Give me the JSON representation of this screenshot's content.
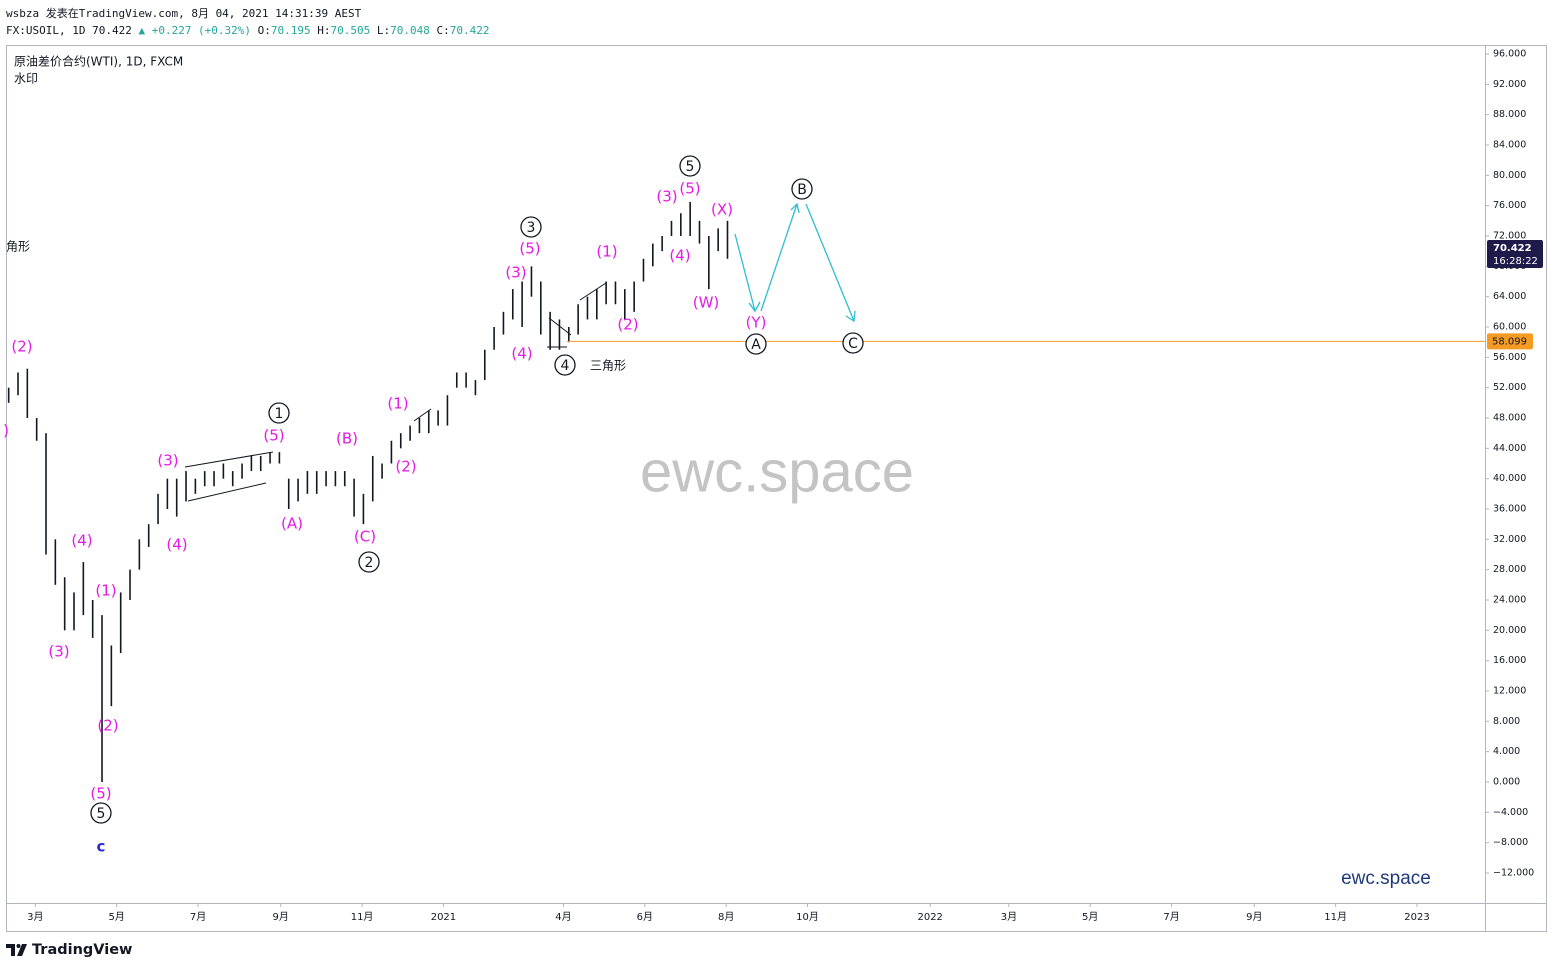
{
  "header": {
    "line1": "wsbza 发表在TradingView.com, 8月 04, 2021 14:31:39 AEST",
    "line2": [
      {
        "text": "FX:USOIL, 1D 70.422 ",
        "color": "#131722"
      },
      {
        "text": "▲",
        "color": "#26a69a"
      },
      {
        "text": " +0.227 (+0.32%) ",
        "color": "#26a69a"
      },
      {
        "text": "O:",
        "color": "#131722"
      },
      {
        "text": "70.195",
        "color": "#26a69a"
      },
      {
        "text": " H:",
        "color": "#131722"
      },
      {
        "text": "70.505",
        "color": "#26a69a"
      },
      {
        "text": " L:",
        "color": "#131722"
      },
      {
        "text": "70.048",
        "color": "#26a69a"
      },
      {
        "text": " C:",
        "color": "#131722"
      },
      {
        "text": "70.422",
        "color": "#26a69a"
      }
    ]
  },
  "footer": {
    "brand": "TradingView"
  },
  "chart_data": {
    "type": "ohlc",
    "title": "原油差价合约(WTI), 1D, FXCM",
    "subtitle": "水印",
    "color": "#131722",
    "x": [
      "2020-02-10",
      "2020-02-17",
      "2020-02-24",
      "2020-03-02",
      "2020-03-09",
      "2020-03-16",
      "2020-03-23",
      "2020-03-30",
      "2020-04-06",
      "2020-04-13",
      "2020-04-20",
      "2020-04-27",
      "2020-05-04",
      "2020-05-11",
      "2020-05-18",
      "2020-05-25",
      "2020-06-01",
      "2020-06-08",
      "2020-06-15",
      "2020-06-22",
      "2020-06-29",
      "2020-07-06",
      "2020-07-13",
      "2020-07-20",
      "2020-07-27",
      "2020-08-03",
      "2020-08-10",
      "2020-08-17",
      "2020-08-24",
      "2020-08-31",
      "2020-09-07",
      "2020-09-14",
      "2020-09-21",
      "2020-09-28",
      "2020-10-05",
      "2020-10-12",
      "2020-10-19",
      "2020-10-26",
      "2020-11-02",
      "2020-11-09",
      "2020-11-16",
      "2020-11-23",
      "2020-11-30",
      "2020-12-07",
      "2020-12-14",
      "2020-12-21",
      "2020-12-28",
      "2021-01-04",
      "2021-01-11",
      "2021-01-18",
      "2021-01-25",
      "2021-02-01",
      "2021-02-08",
      "2021-02-15",
      "2021-02-22",
      "2021-03-01",
      "2021-03-08",
      "2021-03-15",
      "2021-03-22",
      "2021-03-29",
      "2021-04-05",
      "2021-04-12",
      "2021-04-19",
      "2021-04-26",
      "2021-05-03",
      "2021-05-10",
      "2021-05-17",
      "2021-05-24",
      "2021-05-31",
      "2021-06-07",
      "2021-06-14",
      "2021-06-21",
      "2021-06-28",
      "2021-07-05",
      "2021-07-12",
      "2021-07-19",
      "2021-07-26",
      "2021-08-02"
    ],
    "high": [
      52,
      54,
      54.5,
      48,
      46,
      32,
      27,
      25,
      29,
      24,
      22,
      18,
      25,
      28,
      32,
      34,
      38,
      40,
      40,
      41,
      40,
      41,
      41,
      42,
      41,
      42,
      43,
      43,
      43.5,
      43.5,
      40,
      40,
      41,
      41,
      41,
      41,
      41,
      40,
      38,
      43,
      42,
      45,
      46,
      47,
      48,
      49,
      49,
      51,
      54,
      54,
      53,
      57,
      60,
      62,
      65,
      66,
      68,
      66,
      62,
      61,
      60,
      63,
      64,
      65,
      66,
      66,
      65,
      66,
      69,
      71,
      72,
      74,
      75,
      76.5,
      74,
      72,
      73,
      74
    ],
    "low": [
      50,
      51,
      48,
      45,
      30,
      26,
      20,
      20,
      22,
      19,
      0,
      10,
      17,
      24,
      28,
      31,
      34,
      36,
      35,
      37,
      38,
      39,
      39,
      40,
      39,
      40,
      41,
      41,
      42,
      42,
      36,
      37,
      38,
      38,
      39,
      39,
      39,
      35,
      34,
      37,
      40,
      42,
      44,
      45,
      46,
      46,
      47,
      47,
      52,
      52,
      51,
      53,
      57,
      59,
      61,
      60,
      64,
      59,
      57,
      57,
      58,
      59,
      61,
      61,
      63,
      63,
      61,
      62,
      66,
      68,
      70,
      72,
      72,
      72,
      71,
      65,
      70,
      69
    ],
    "xlim": [
      "2020-02-08",
      "2023-02-21"
    ],
    "xticks": [
      {
        "value": "2020-03",
        "label": "3月"
      },
      {
        "value": "2020-05",
        "label": "5月"
      },
      {
        "value": "2020-07",
        "label": "7月"
      },
      {
        "value": "2020-09",
        "label": "9月"
      },
      {
        "value": "2020-11",
        "label": "11月"
      },
      {
        "value": "2021-01",
        "label": "2021"
      },
      {
        "value": "2021-04",
        "label": "4月"
      },
      {
        "value": "2021-06",
        "label": "6月"
      },
      {
        "value": "2021-08",
        "label": "8月"
      },
      {
        "value": "2021-10",
        "label": "10月"
      },
      {
        "value": "2022-01",
        "label": "2022"
      },
      {
        "value": "2022-03",
        "label": "3月"
      },
      {
        "value": "2022-05",
        "label": "5月"
      },
      {
        "value": "2022-07",
        "label": "7月"
      },
      {
        "value": "2022-09",
        "label": "9月"
      },
      {
        "value": "2022-11",
        "label": "11月"
      },
      {
        "value": "2023-01",
        "label": "2023"
      }
    ],
    "ylim": [
      -15.96,
      97.19
    ],
    "yticks": [
      {
        "value": 96,
        "label": "96.000"
      },
      {
        "value": 92,
        "label": "92.000"
      },
      {
        "value": 88,
        "label": "88.000"
      },
      {
        "value": 84,
        "label": "84.000"
      },
      {
        "value": 80,
        "label": "80.000"
      },
      {
        "value": 76,
        "label": "76.000"
      },
      {
        "value": 72,
        "label": "72.000"
      },
      {
        "value": 68,
        "label": "68.000"
      },
      {
        "value": 64,
        "label": "64.000"
      },
      {
        "value": 60,
        "label": "60.000"
      },
      {
        "value": 56,
        "label": "56.000"
      },
      {
        "value": 52,
        "label": "52.000"
      },
      {
        "value": 48,
        "label": "48.000"
      },
      {
        "value": 44,
        "label": "44.000"
      },
      {
        "value": 40,
        "label": "40.000"
      },
      {
        "value": 36,
        "label": "36.000"
      },
      {
        "value": 32,
        "label": "32.000"
      },
      {
        "value": 28,
        "label": "28.000"
      },
      {
        "value": 24,
        "label": "24.000"
      },
      {
        "value": 20,
        "label": "20.000"
      },
      {
        "value": 16,
        "label": "16.000"
      },
      {
        "value": 12,
        "label": "12.000"
      },
      {
        "value": 8,
        "label": "8.000"
      },
      {
        "value": 4,
        "label": "4.000"
      },
      {
        "value": 0,
        "label": "0.000"
      },
      {
        "value": -4,
        "label": "−4.000"
      },
      {
        "value": -8,
        "label": "−8.000"
      },
      {
        "value": -12,
        "label": "−12.000"
      }
    ],
    "last_price": {
      "value": 70.422,
      "label": "70.422",
      "countdown": "16:28:22",
      "color": "#1e1b4b"
    },
    "price_line": {
      "value": 58.099,
      "label": "58.099",
      "color": "#f59a23"
    },
    "annotations": [
      {
        "text": "(2)",
        "style": "wave"
      },
      {
        "text": ")",
        "style": "wave"
      },
      {
        "text": "(4)",
        "style": "wave"
      },
      {
        "text": "(3)",
        "style": "wave"
      },
      {
        "text": "(1)",
        "style": "wave"
      },
      {
        "text": "(2)",
        "style": "wave"
      },
      {
        "text": "(5)",
        "style": "wave"
      },
      {
        "text": "(3)",
        "style": "wave"
      },
      {
        "text": "(4)",
        "style": "wave"
      },
      {
        "text": "(5)",
        "style": "wave"
      },
      {
        "text": "(A)",
        "style": "wave"
      },
      {
        "text": "(B)",
        "style": "wave"
      },
      {
        "text": "(C)",
        "style": "wave"
      },
      {
        "text": "(1)",
        "style": "wave"
      },
      {
        "text": "(2)",
        "style": "wave"
      },
      {
        "text": "(3)",
        "style": "wave"
      },
      {
        "text": "(5)",
        "style": "wave"
      },
      {
        "text": "(4)",
        "style": "wave"
      },
      {
        "text": "(1)",
        "style": "wave"
      },
      {
        "text": "(2)",
        "style": "wave"
      },
      {
        "text": "(3)",
        "style": "wave"
      },
      {
        "text": "(5)",
        "style": "wave"
      },
      {
        "text": "(4)",
        "style": "wave"
      },
      {
        "text": "(W)",
        "style": "wave"
      },
      {
        "text": "(X)",
        "style": "wave"
      },
      {
        "text": "(Y)",
        "style": "wave"
      },
      {
        "text": "1",
        "style": "circled"
      },
      {
        "text": "2",
        "style": "circled"
      },
      {
        "text": "3",
        "style": "circled"
      },
      {
        "text": "4",
        "style": "circled"
      },
      {
        "text": "5",
        "style": "circled"
      },
      {
        "text": "5",
        "style": "circled"
      },
      {
        "text": "A",
        "style": "circled"
      },
      {
        "text": "B",
        "style": "circled"
      },
      {
        "text": "C",
        "style": "circled"
      },
      {
        "text": "c",
        "style": "degree"
      },
      {
        "text": "三角形",
        "style": "note"
      },
      {
        "text": "角形",
        "style": "note"
      }
    ],
    "watermarks": [
      "ewc.space",
      "ewc.space"
    ]
  }
}
